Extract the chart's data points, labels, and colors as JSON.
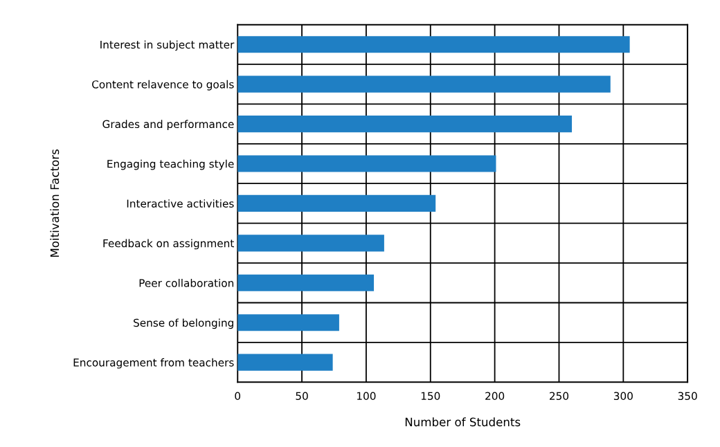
{
  "chart_data": {
    "type": "bar",
    "orientation": "horizontal",
    "xlabel": "Number of Students",
    "ylabel": "Moitivation Factors",
    "categories": [
      "Interest in subject matter",
      "Content relavence to goals",
      "Grades and performance",
      "Engaging teaching style",
      "Interactive activities",
      "Feedback on assignment",
      "Peer collaboration",
      "Sense of belonging",
      "Encouragement from teachers"
    ],
    "values": [
      305,
      290,
      260,
      201,
      154,
      114,
      106,
      79,
      74
    ],
    "color": "#1f7fc4",
    "xlim": [
      0,
      350
    ],
    "xticks": [
      0,
      50,
      100,
      150,
      200,
      250,
      300,
      350
    ],
    "grid": true
  }
}
